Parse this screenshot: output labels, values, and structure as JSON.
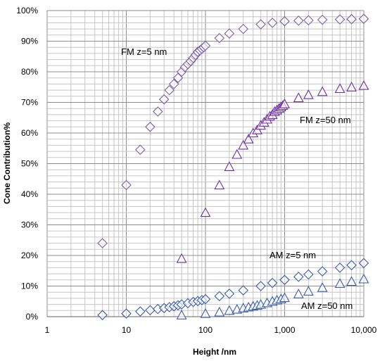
{
  "chart_data": {
    "type": "scatter",
    "title": "",
    "xlabel": "Height /nm",
    "ylabel": "Cone Contribution%",
    "x_scale": "log",
    "xlim": [
      1,
      10000
    ],
    "ylim": [
      0,
      100
    ],
    "x_ticks": [
      "1",
      "10",
      "100",
      "1,000",
      "10,000"
    ],
    "y_ticks": [
      "0%",
      "10%",
      "20%",
      "30%",
      "40%",
      "50%",
      "60%",
      "70%",
      "80%",
      "90%",
      "100%"
    ],
    "grid": "major and minor",
    "legend": "none",
    "series": [
      {
        "name": "FM z=5 nm",
        "marker": "diamond",
        "color": "#7b5ea7",
        "x": [
          5,
          10,
          15,
          20,
          25,
          30,
          35,
          40,
          45,
          50,
          55,
          60,
          65,
          70,
          75,
          80,
          85,
          90,
          95,
          100,
          150,
          200,
          300,
          500,
          700,
          1000,
          1500,
          2000,
          3000,
          5000,
          7000,
          10000
        ],
        "y": [
          24,
          43,
          54.5,
          62,
          67,
          71,
          74,
          76,
          78,
          80,
          81.5,
          82.5,
          83.5,
          84.5,
          85.5,
          86.5,
          87,
          87.5,
          88,
          88.5,
          91,
          92.5,
          94,
          95.5,
          96,
          96.5,
          96.7,
          96.8,
          97,
          97.1,
          97.2,
          97.3
        ]
      },
      {
        "name": "FM z=50 nm",
        "marker": "triangle",
        "color": "#7030a0",
        "x": [
          50,
          100,
          150,
          200,
          250,
          300,
          350,
          400,
          450,
          500,
          550,
          600,
          650,
          700,
          750,
          800,
          850,
          900,
          950,
          1000,
          1500,
          2000,
          3000,
          5000,
          7000,
          10000
        ],
        "y": [
          19,
          34,
          43,
          49,
          53,
          56,
          58,
          60,
          61,
          62.5,
          63.5,
          64.5,
          65.5,
          66,
          67,
          67.5,
          68,
          68.5,
          69,
          69.5,
          71.5,
          72.5,
          73.5,
          74.5,
          75,
          75.5
        ]
      },
      {
        "name": "AM z=5 nm",
        "marker": "diamond",
        "color": "#3a5ba8",
        "x": [
          5,
          10,
          15,
          20,
          25,
          30,
          35,
          40,
          45,
          50,
          60,
          70,
          80,
          90,
          100,
          150,
          200,
          300,
          500,
          700,
          1000,
          1500,
          2000,
          3000,
          5000,
          7000,
          10000
        ],
        "y": [
          0.5,
          1,
          1.7,
          2.1,
          2.5,
          2.8,
          3.1,
          3.4,
          3.7,
          4,
          4.4,
          4.8,
          5.1,
          5.4,
          5.7,
          6.7,
          7.5,
          8.6,
          10,
          11,
          12,
          13,
          13.8,
          14.8,
          16,
          16.8,
          17.5
        ]
      },
      {
        "name": "AM z=50 nm",
        "marker": "triangle",
        "color": "#3a5ba8",
        "x": [
          50,
          100,
          150,
          200,
          250,
          300,
          350,
          400,
          450,
          500,
          600,
          700,
          800,
          900,
          1000,
          1500,
          2000,
          3000,
          5000,
          7000,
          10000
        ],
        "y": [
          0.5,
          1,
          1.5,
          2,
          2.4,
          2.8,
          3.1,
          3.4,
          3.7,
          4,
          4.5,
          5,
          5.4,
          5.8,
          6.2,
          7.4,
          8.3,
          9.5,
          10.8,
          11.5,
          12.3
        ]
      }
    ],
    "annotations": [
      "FM z=5 nm",
      "FM z=50 nm",
      "AM z=5 nm",
      "AM z=50 nm"
    ]
  }
}
